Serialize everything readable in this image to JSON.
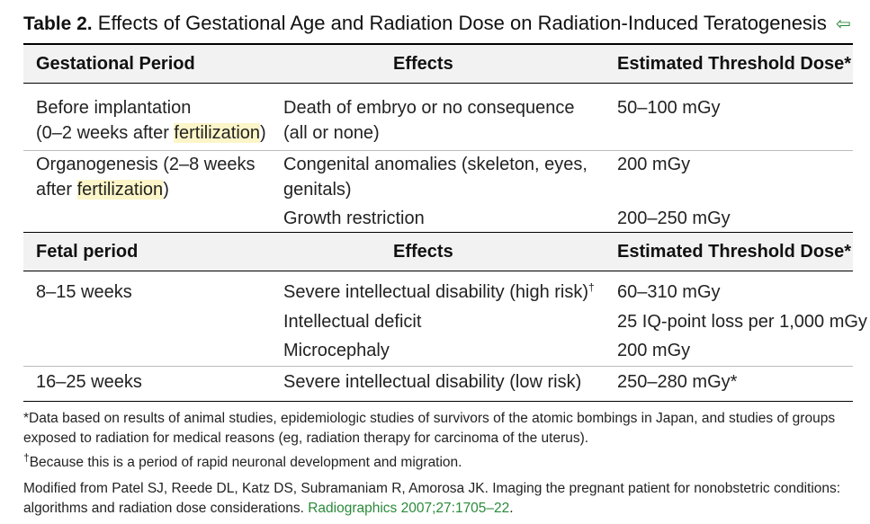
{
  "title": {
    "label": "Table 2.",
    "text": "Effects of Gestational Age and Radiation Dose on Radiation-Induced Teratogenesis",
    "back_icon": "⇦"
  },
  "header1": {
    "col1": "Gestational Period",
    "col2": "Effects",
    "col3": "Estimated Threshold Dose*"
  },
  "section1": {
    "row1": {
      "period_line1": "Before implantation",
      "period_line2_pre": "(0–2 weeks after ",
      "period_line2_hl": "fertilization",
      "period_line2_post": ")",
      "effect_line1": "Death of embryo or no consequence",
      "effect_line2": "(all or none)",
      "dose": "50–100 mGy"
    },
    "row2": {
      "period_line1": "Organogenesis (2–8 weeks",
      "period_line2_pre": "after ",
      "period_line2_hl": "fertilization",
      "period_line2_post": ")",
      "effect_line1": "Congenital anomalies (skeleton, eyes,",
      "effect_line2": "genitals)",
      "dose": "200 mGy",
      "effect2": "Growth restriction",
      "dose2": "200–250 mGy"
    }
  },
  "header2": {
    "col1": "Fetal period",
    "col2": "Effects",
    "col3": "Estimated Threshold Dose*"
  },
  "section2": {
    "row1": {
      "period": "8–15 weeks",
      "effect1": "Severe intellectual disability (high risk)",
      "effect1_sup": "†",
      "dose1": "60–310 mGy",
      "effect2": "Intellectual deficit",
      "dose2": "25 IQ-point loss per 1,000 mGy",
      "effect3": "Microcephaly",
      "dose3": "200 mGy"
    },
    "row2": {
      "period": "16–25 weeks",
      "effect": "Severe intellectual disability (low risk)",
      "dose": "250–280 mGy*"
    }
  },
  "notes": {
    "star": "*Data based on results of animal studies, epidemiologic studies of survivors of the atomic bombings in Japan, and studies of groups exposed to radiation for medical reasons (eg, radiation therapy for carcinoma of the uterus).",
    "dagger_mark": "†",
    "dagger": "Because this is a period of rapid neuronal development and migration.",
    "source": "Modified from Patel SJ, Reede DL, Katz DS, Subramaniam R, Amorosa JK. Imaging the pregnant patient for nonobstetric conditions: algorithms and radiation dose considerations. ",
    "source_link": "Radiographics 2007;27:1705–22",
    "source_end": "."
  },
  "colors": {
    "link": "#2a8a3a",
    "highlight": "#fbf5c8",
    "header_bg": "#f2f2f2"
  }
}
